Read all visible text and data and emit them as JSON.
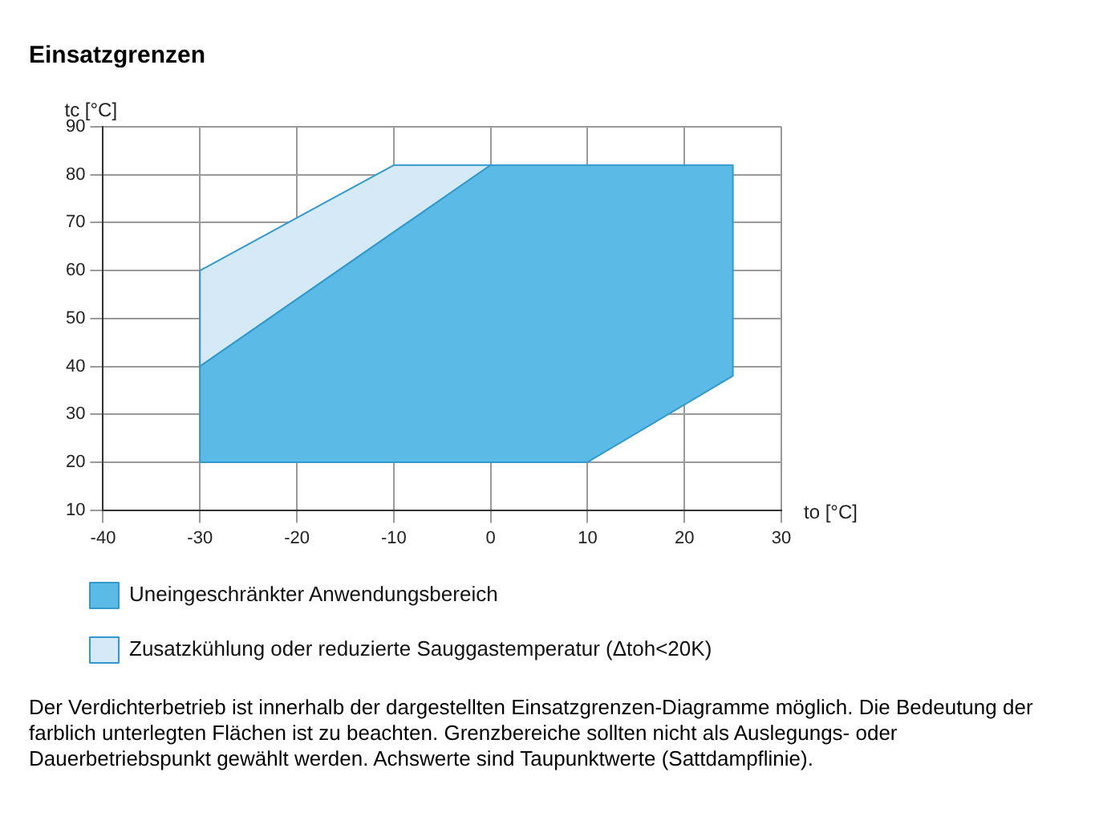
{
  "chart_data": {
    "type": "area",
    "title": "Einsatzgrenzen",
    "xlabel": "to [°C]",
    "ylabel": "tc [°C]",
    "series": [
      {
        "name": "Uneingeschränkter Anwendungsbereich",
        "color": "#5bbbe6",
        "x": [
          -30,
          -30,
          0,
          25,
          25,
          10,
          -30
        ],
        "values": [
          20,
          40,
          82,
          82,
          38,
          20,
          20
        ]
      },
      {
        "name": "Zusatzkühlung oder reduzierte Sauggastemperatur (Δtoh<20K)",
        "color": "#d5eaf6",
        "x": [
          -30,
          -30,
          -10,
          0,
          -30
        ],
        "values": [
          40,
          60,
          82,
          82,
          40
        ]
      }
    ],
    "xlim": [
      -40,
      30
    ],
    "xticks": [
      -40,
      -30,
      -20,
      -10,
      0,
      10,
      20,
      30
    ],
    "ylim": [
      10,
      90
    ],
    "yticks": [
      10,
      20,
      30,
      40,
      50,
      60,
      70,
      80,
      90
    ],
    "grid": true,
    "legend": "bottom",
    "marker": "none",
    "line_style": "solid",
    "annotations": [
      "Der Verdichterbetrieb ist innerhalb der dargestellten Einsatzgrenzen-Diagramme möglich. Die Bedeutung der farblich unterlegten Flächen ist zu beachten. Grenzbereiche sollten nicht als Auslegungs- oder Dauerbetriebspunkt gewählt werden. Achswerte sind Taupunktwerte (Sattdampflinie)."
    ]
  }
}
